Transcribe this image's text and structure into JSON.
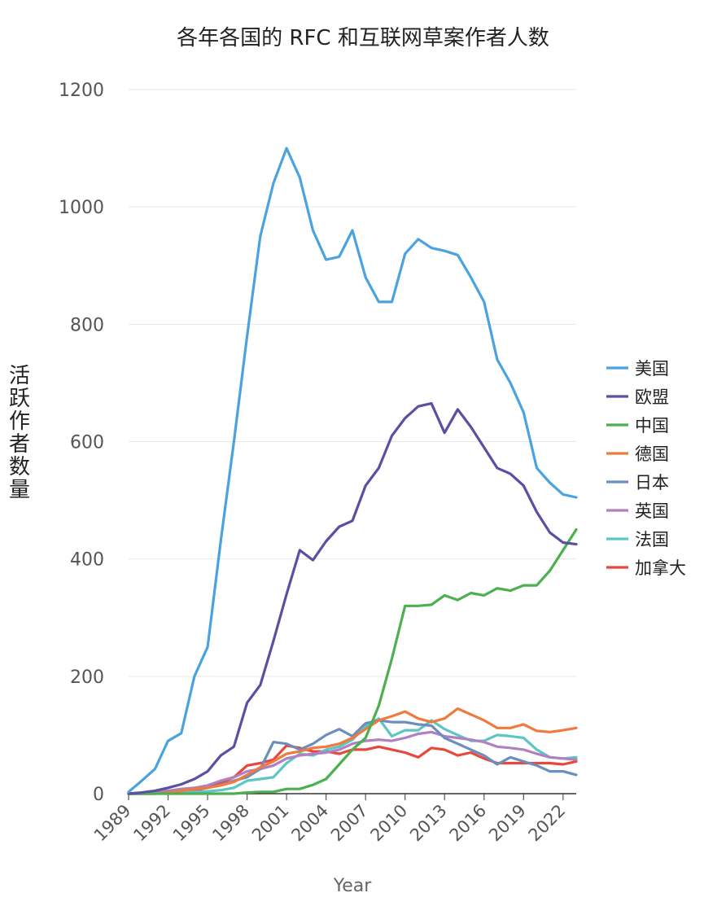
{
  "chart_data": {
    "type": "line",
    "title": "各年各国的 RFC 和互联网草案作者人数",
    "xlabel": "Year",
    "ylabel": "活跃作者数量",
    "xlim": [
      1989,
      2023
    ],
    "ylim": [
      0,
      1200
    ],
    "yticks": [
      0,
      200,
      400,
      600,
      800,
      1000,
      1200
    ],
    "xticks": [
      1989,
      1992,
      1995,
      1998,
      2001,
      2004,
      2007,
      2010,
      2013,
      2016,
      2019,
      2022
    ],
    "x": [
      1989,
      1990,
      1991,
      1992,
      1993,
      1994,
      1995,
      1996,
      1997,
      1998,
      1999,
      2000,
      2001,
      2002,
      2003,
      2004,
      2005,
      2006,
      2007,
      2008,
      2009,
      2010,
      2011,
      2012,
      2013,
      2014,
      2015,
      2016,
      2017,
      2018,
      2019,
      2020,
      2021,
      2022,
      2023
    ],
    "legend_position": "right",
    "series": [
      {
        "name": "美国",
        "color": "#4aa3df",
        "values": [
          3,
          22,
          42,
          90,
          103,
          200,
          250,
          430,
          600,
          780,
          950,
          1040,
          1100,
          1050,
          960,
          910,
          915,
          960,
          880,
          838,
          838,
          920,
          945,
          930,
          925,
          918,
          880,
          838,
          740,
          700,
          650,
          555,
          530,
          510,
          505
        ]
      },
      {
        "name": "欧盟",
        "color": "#5b4fa3",
        "values": [
          0,
          2,
          5,
          10,
          16,
          25,
          38,
          65,
          80,
          155,
          185,
          260,
          340,
          415,
          398,
          430,
          455,
          465,
          525,
          555,
          610,
          640,
          660,
          665,
          615,
          655,
          625,
          590,
          555,
          545,
          525,
          480,
          445,
          428,
          425
        ]
      },
      {
        "name": "中国",
        "color": "#4caf50",
        "values": [
          0,
          0,
          0,
          0,
          0,
          0,
          0,
          0,
          0,
          2,
          3,
          3,
          8,
          8,
          15,
          25,
          50,
          75,
          95,
          150,
          230,
          320,
          320,
          322,
          338,
          330,
          342,
          338,
          350,
          346,
          355,
          355,
          380,
          415,
          450
        ]
      },
      {
        "name": "德国",
        "color": "#f07a3c",
        "values": [
          0,
          0,
          0,
          2,
          5,
          8,
          10,
          14,
          20,
          32,
          45,
          55,
          68,
          72,
          78,
          80,
          85,
          95,
          110,
          125,
          132,
          140,
          128,
          122,
          128,
          145,
          135,
          125,
          112,
          112,
          118,
          107,
          105,
          108,
          112
        ]
      },
      {
        "name": "日本",
        "color": "#6c8ebf",
        "values": [
          0,
          0,
          1,
          3,
          5,
          8,
          10,
          15,
          22,
          28,
          42,
          88,
          85,
          75,
          85,
          100,
          110,
          98,
          120,
          125,
          122,
          122,
          118,
          116,
          95,
          85,
          75,
          65,
          50,
          62,
          55,
          48,
          38,
          38,
          32
        ]
      },
      {
        "name": "英国",
        "color": "#b27fc1",
        "values": [
          0,
          1,
          3,
          5,
          8,
          10,
          14,
          22,
          28,
          38,
          42,
          48,
          60,
          65,
          68,
          70,
          75,
          85,
          90,
          92,
          90,
          95,
          102,
          105,
          98,
          95,
          92,
          88,
          80,
          78,
          75,
          68,
          62,
          60,
          58
        ]
      },
      {
        "name": "法国",
        "color": "#5cc6c6",
        "values": [
          0,
          0,
          0,
          1,
          2,
          3,
          4,
          6,
          10,
          22,
          25,
          28,
          52,
          68,
          65,
          75,
          80,
          92,
          115,
          128,
          98,
          108,
          108,
          125,
          110,
          100,
          90,
          90,
          100,
          98,
          95,
          75,
          62,
          60,
          62
        ]
      },
      {
        "name": "加拿大",
        "color": "#e8473c",
        "values": [
          0,
          0,
          0,
          1,
          3,
          6,
          10,
          18,
          28,
          48,
          52,
          58,
          82,
          78,
          72,
          72,
          68,
          75,
          75,
          80,
          75,
          70,
          62,
          78,
          75,
          65,
          70,
          60,
          52,
          52,
          52,
          52,
          52,
          50,
          55
        ]
      }
    ]
  }
}
